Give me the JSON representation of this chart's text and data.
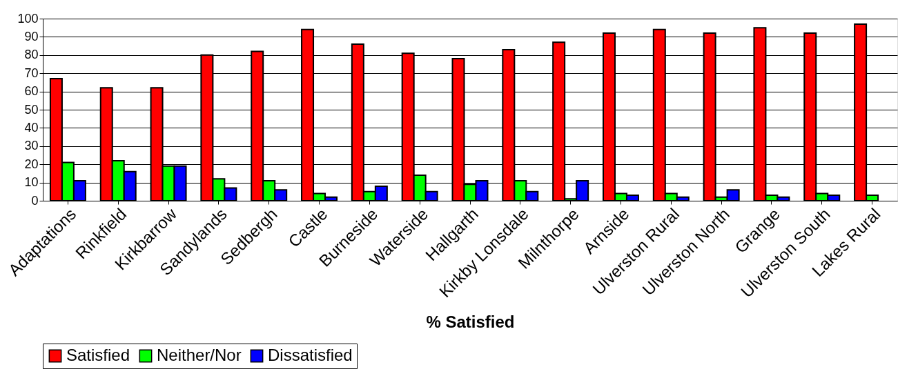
{
  "chart_data": {
    "type": "bar",
    "xlabel": "% Satisfied",
    "categories": [
      "Adaptations",
      "Rinkfield",
      "Kirkbarrow",
      "Sandylands",
      "Sedbergh",
      "Castle",
      "Burneside",
      "Waterside",
      "Hallgarth",
      "Kirkby Lonsdale",
      "Milnthorpe",
      "Arnside",
      "Ulverston Rural",
      "Ulverston North",
      "Grange",
      "Ulverston South",
      "Lakes Rural"
    ],
    "series": [
      {
        "name": "Satisfied",
        "color": "#ff0000",
        "values": [
          67,
          62,
          62,
          80,
          82,
          94,
          86,
          81,
          78,
          83,
          87,
          92,
          94,
          92,
          95,
          92,
          97
        ]
      },
      {
        "name": "Neither/Nor",
        "color": "#00ff00",
        "values": [
          21,
          22,
          19,
          12,
          11,
          4,
          5,
          14,
          9,
          11,
          1,
          4,
          4,
          2,
          3,
          4,
          3
        ]
      },
      {
        "name": "Dissatisfied",
        "color": "#0000ff",
        "values": [
          11,
          16,
          19,
          7,
          6,
          2,
          8,
          5,
          11,
          5,
          11,
          3,
          2,
          6,
          2,
          3,
          null
        ]
      }
    ],
    "ylim": [
      0,
      100
    ],
    "yticks": [
      0,
      10,
      20,
      30,
      40,
      50,
      60,
      70,
      80,
      90,
      100
    ],
    "grid": "y",
    "legend": "bottom"
  }
}
